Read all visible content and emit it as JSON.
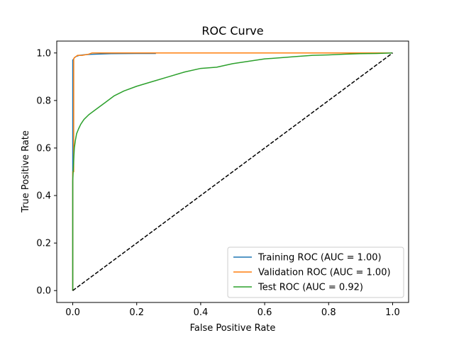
{
  "chart_data": {
    "type": "line",
    "title": "ROC Curve",
    "xlabel": "False Positive Rate",
    "ylabel": "True Positive Rate",
    "xlim": [
      -0.05,
      1.05
    ],
    "ylim": [
      -0.05,
      1.05
    ],
    "xticks": [
      0.0,
      0.2,
      0.4,
      0.6,
      0.8,
      1.0
    ],
    "yticks": [
      0.0,
      0.2,
      0.4,
      0.6,
      0.8,
      1.0
    ],
    "xtick_labels": [
      "0.0",
      "0.2",
      "0.4",
      "0.6",
      "0.8",
      "1.0"
    ],
    "ytick_labels": [
      "0.0",
      "0.2",
      "0.4",
      "0.6",
      "0.8",
      "1.0"
    ],
    "grid": false,
    "legend_position": "lower-right",
    "series": [
      {
        "name": "Training ROC (AUC = 1.00)",
        "color": "#1f77b4",
        "x": [
          0,
          0,
          0.003,
          0.005,
          0.01,
          0.02,
          0.04,
          0.07,
          0.12,
          0.2,
          0.26
        ],
        "y": [
          0,
          0.97,
          0.975,
          0.98,
          0.985,
          0.99,
          0.993,
          0.995,
          0.997,
          0.998,
          0.998
        ]
      },
      {
        "name": "Validation ROC (AUC = 1.00)",
        "color": "#ff7f0e",
        "x": [
          0,
          0,
          0.003,
          0.003,
          0.005,
          0.01,
          0.015,
          0.03,
          0.05,
          0.06,
          0.3,
          0.6,
          0.8,
          0.8,
          1.0
        ],
        "y": [
          0,
          0.5,
          0.5,
          0.975,
          0.98,
          0.985,
          0.99,
          0.99,
          0.995,
          1.0,
          1.0,
          1.0,
          1.0,
          1.0,
          1.0
        ]
      },
      {
        "name": "Test ROC (AUC = 0.92)",
        "color": "#2ca02c",
        "x": [
          0,
          0,
          0.003,
          0.005,
          0.008,
          0.012,
          0.018,
          0.025,
          0.035,
          0.05,
          0.07,
          0.1,
          0.13,
          0.16,
          0.2,
          0.25,
          0.3,
          0.35,
          0.4,
          0.45,
          0.5,
          0.55,
          0.6,
          0.65,
          0.7,
          0.75,
          0.8,
          0.85,
          0.9,
          0.95,
          1.0
        ],
        "y": [
          0,
          0.46,
          0.55,
          0.6,
          0.63,
          0.66,
          0.68,
          0.7,
          0.72,
          0.74,
          0.76,
          0.79,
          0.82,
          0.84,
          0.86,
          0.88,
          0.9,
          0.92,
          0.935,
          0.94,
          0.955,
          0.965,
          0.975,
          0.98,
          0.985,
          0.99,
          0.992,
          0.995,
          0.997,
          0.998,
          1.0
        ]
      },
      {
        "name": "",
        "color": "#000000",
        "dashed": true,
        "x": [
          0,
          1
        ],
        "y": [
          0,
          1
        ]
      }
    ]
  }
}
